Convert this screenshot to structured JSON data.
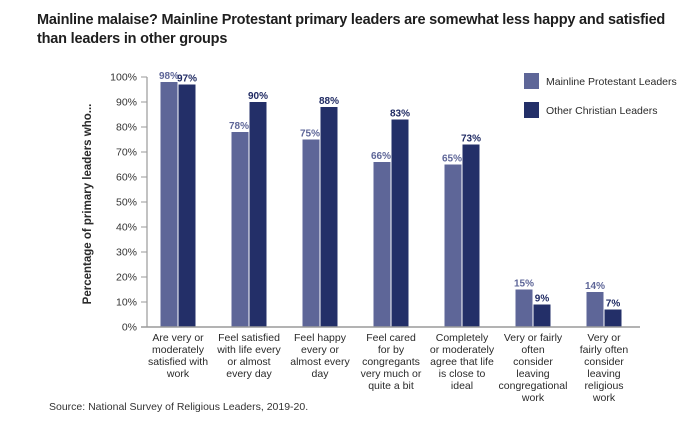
{
  "title": "Mainline malaise? Mainline Protestant primary leaders are somewhat less happy and satisfied than leaders in other groups",
  "source": "Source: National Survey of Religious Leaders, 2019-20.",
  "colors": {
    "mainline": "#5e6698",
    "other": "#232f68",
    "mainline_label": "#5e6698",
    "other_label": "#1f2a63",
    "axis": "#9a9a9a"
  },
  "chart_data": {
    "type": "bar",
    "title": "Mainline malaise? Mainline Protestant primary leaders are somewhat less happy and satisfied than leaders in other groups",
    "xlabel": "",
    "ylabel": "Percentage of primary leaders who...",
    "ylim": [
      0,
      100
    ],
    "yticks": [
      "0%",
      "10%",
      "20%",
      "30%",
      "40%",
      "50%",
      "60%",
      "70%",
      "80%",
      "90%",
      "100%"
    ],
    "grid": false,
    "legend_position": "top-right",
    "categories": [
      [
        "Are very or",
        "moderately",
        "satisfied with",
        "work"
      ],
      [
        "Feel satisfied",
        "with life every",
        "or almost",
        "every day"
      ],
      [
        "Feel happy",
        "every or",
        "almost every",
        "day"
      ],
      [
        "Feel cared",
        "for by",
        "congregants",
        "very much or",
        "quite a bit"
      ],
      [
        "Completely",
        "or moderately",
        "agree that life",
        "is close to",
        "ideal"
      ],
      [
        "Very or fairly",
        "often",
        "consider",
        "leaving",
        "congregational",
        "work"
      ],
      [
        "Very or",
        "fairly often",
        "consider",
        "leaving",
        "religious",
        "work"
      ]
    ],
    "series": [
      {
        "name": "Mainline Protestant Leaders",
        "values": [
          98,
          78,
          75,
          66,
          65,
          15,
          14
        ],
        "labels": [
          "98%",
          "78%",
          "75%",
          "66%",
          "65%",
          "15%",
          "14%"
        ]
      },
      {
        "name": "Other Christian Leaders",
        "values": [
          97,
          90,
          88,
          83,
          73,
          9,
          7
        ],
        "labels": [
          "97%",
          "90%",
          "88%",
          "83%",
          "73%",
          "9%",
          "7%"
        ]
      }
    ]
  }
}
